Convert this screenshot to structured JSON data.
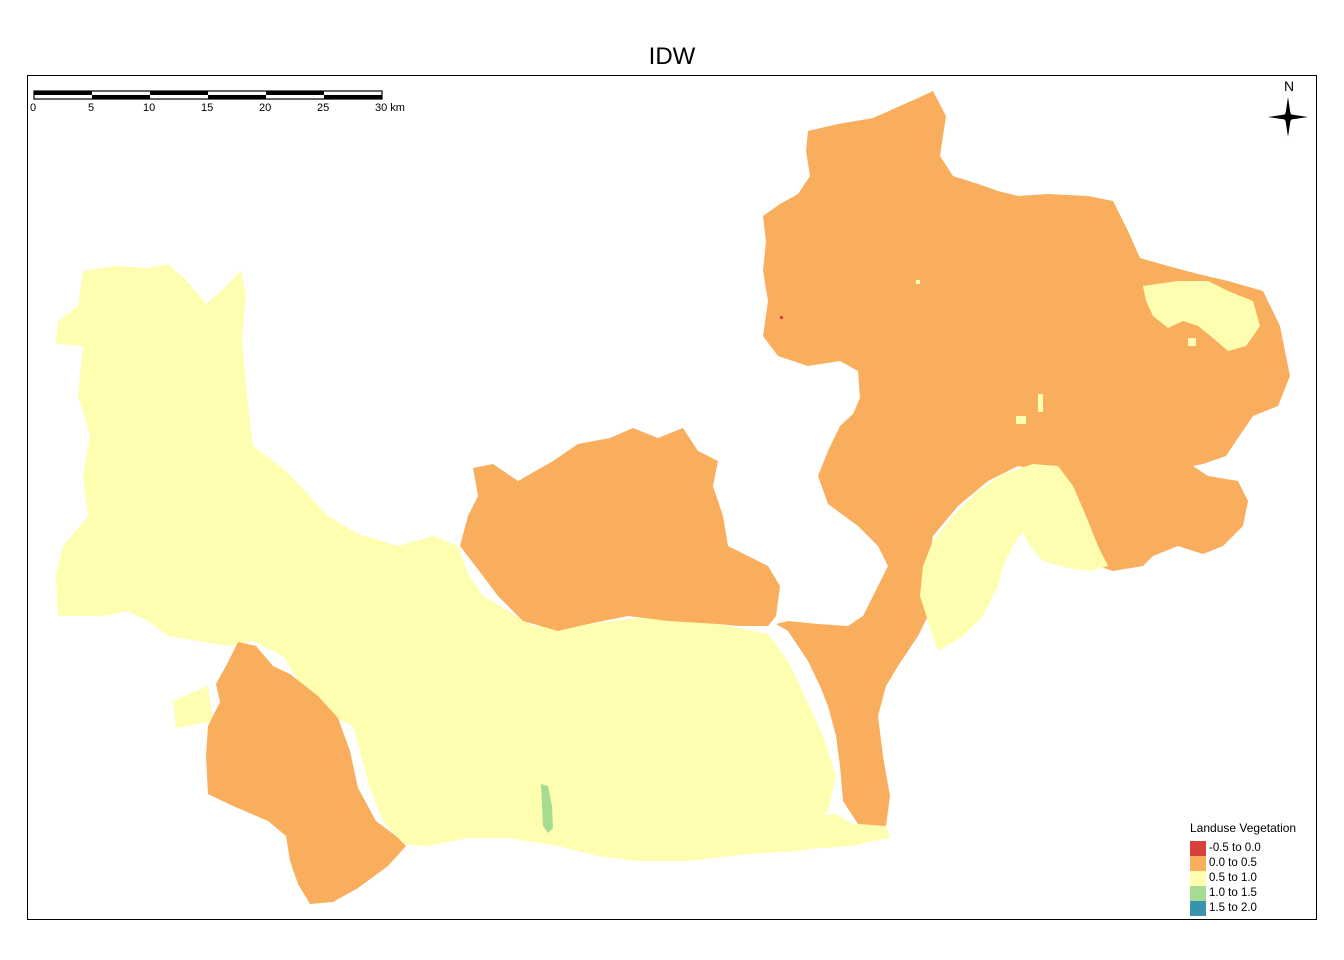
{
  "title": "IDW",
  "scale_bar": {
    "ticks": [
      "0",
      "5",
      "10",
      "15",
      "20",
      "25",
      "30 km"
    ]
  },
  "north_arrow": {
    "label": "N",
    "icon": "north-arrow-icon"
  },
  "legend": {
    "title": "Landuse Vegetation",
    "items": [
      {
        "label": "-0.5 to 0.0",
        "color": "#d7403b"
      },
      {
        "label": "0.0 to 0.5",
        "color": "#f9ae5e"
      },
      {
        "label": "0.5 to 1.0",
        "color": "#fefeb0"
      },
      {
        "label": "1.0 to 1.5",
        "color": "#a8db92"
      },
      {
        "label": "1.5 to 2.0",
        "color": "#3a93ac"
      }
    ]
  }
}
